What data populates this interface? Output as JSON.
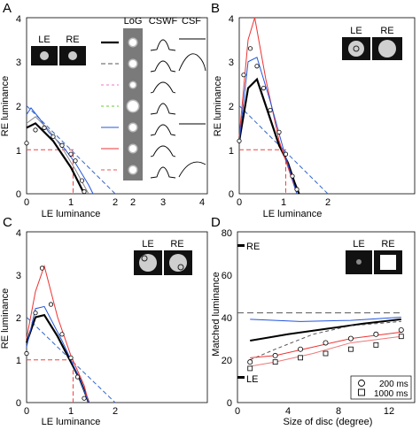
{
  "figure": {
    "panels": [
      {
        "letter": "A",
        "xlabel": "LE luminance",
        "ylabel": "RE luminance",
        "xticks": [
          "0",
          "1",
          "2"
        ],
        "yticks": [
          "0",
          "1",
          "2",
          "3",
          "4"
        ],
        "inset_labels": [
          "LE",
          "RE"
        ]
      },
      {
        "letter": "B",
        "xlabel": "LE luminance",
        "ylabel": "RE luminance",
        "xticks": [
          "0",
          "1",
          "2"
        ],
        "yticks": [
          "0",
          "1",
          "2",
          "3",
          "4"
        ],
        "inset_labels": [
          "LE",
          "RE"
        ]
      },
      {
        "letter": "C",
        "xlabel": "LE luminance",
        "ylabel": "RE luminance",
        "xticks": [
          "0",
          "1",
          "2"
        ],
        "yticks": [
          "0",
          "1",
          "2",
          "3",
          "4"
        ],
        "inset_labels": [
          "LE",
          "RE"
        ]
      },
      {
        "letter": "D",
        "xlabel": "Size of disc (degree)",
        "ylabel": "Matched luminance",
        "xticks": [
          "0",
          "4",
          "8",
          "12"
        ],
        "yticks": [
          "0",
          "20",
          "40",
          "60",
          "80"
        ],
        "inset_labels": [
          "LE",
          "RE"
        ],
        "marker_re": "RE",
        "marker_le": "LE",
        "legend": [
          "200 ms",
          "1000 ms"
        ]
      }
    ],
    "filter_table": {
      "headers": [
        "LoG",
        "CSWF",
        "CSF"
      ],
      "x_axis_ticks": [
        "2",
        "3",
        "4"
      ],
      "row_colors": [
        "#000000",
        "#555555",
        "#ee77cc",
        "#66cc33",
        "#2255dd",
        "#ee3333",
        "#ee5555"
      ]
    }
  },
  "chart_data": [
    {
      "type": "line",
      "panel": "A",
      "xlabel": "LE luminance",
      "ylabel": "RE luminance",
      "xlim": [
        0,
        2
      ],
      "ylim": [
        0,
        4
      ],
      "curves": [
        {
          "color": "#000000",
          "x": [
            0,
            0.2,
            0.4,
            0.6,
            0.8,
            1.0,
            1.2,
            1.3
          ],
          "y": [
            1.5,
            1.6,
            1.4,
            1.2,
            0.9,
            0.6,
            0.2,
            0
          ]
        },
        {
          "color": "#2255dd",
          "x": [
            0,
            0.1,
            0.3,
            0.5,
            0.8,
            1.1,
            1.4,
            1.5
          ],
          "y": [
            1.8,
            1.95,
            1.7,
            1.4,
            1.1,
            0.7,
            0.2,
            0
          ]
        },
        {
          "color": "#888888",
          "x": [
            0,
            0.2,
            0.5,
            0.8,
            1.1,
            1.4
          ],
          "y": [
            1.6,
            1.75,
            1.45,
            1.05,
            0.55,
            0
          ]
        }
      ],
      "points": {
        "x": [
          0,
          0.2,
          0.4,
          0.6,
          0.8,
          1.0,
          1.1,
          1.25,
          1.3
        ],
        "y": [
          1.15,
          1.45,
          1.5,
          1.3,
          1.1,
          0.9,
          0.75,
          0.3,
          0.05
        ]
      },
      "reference_lines": [
        {
          "from": [
            0,
            2
          ],
          "to": [
            2,
            0
          ]
        }
      ],
      "match_point": [
        1.05,
        1.0
      ]
    },
    {
      "type": "line",
      "panel": "B",
      "xlabel": "LE luminance",
      "ylabel": "RE luminance",
      "xlim": [
        0,
        2
      ],
      "ylim": [
        0,
        4
      ],
      "curves": [
        {
          "color": "#000000",
          "x": [
            0,
            0.2,
            0.4,
            0.6,
            0.9,
            1.1,
            1.25,
            1.35
          ],
          "y": [
            1.2,
            2.4,
            2.6,
            2.0,
            1.1,
            0.7,
            0.25,
            0
          ]
        },
        {
          "color": "#ee3333",
          "x": [
            0,
            0.2,
            0.35,
            0.6,
            0.9,
            1.2,
            1.3
          ],
          "y": [
            1.3,
            3.5,
            4.0,
            2.6,
            1.2,
            0.3,
            0
          ]
        },
        {
          "color": "#2255dd",
          "x": [
            0,
            0.2,
            0.4,
            0.7,
            1.0,
            1.3
          ],
          "y": [
            1.2,
            3.0,
            3.1,
            2.1,
            1.0,
            0
          ]
        }
      ],
      "points": {
        "x": [
          0,
          0.1,
          0.25,
          0.4,
          0.55,
          0.7,
          0.9,
          1.05,
          1.2,
          1.3
        ],
        "y": [
          1.2,
          2.7,
          3.3,
          2.9,
          2.4,
          1.9,
          1.4,
          0.9,
          0.4,
          0.1
        ]
      },
      "reference_lines": [
        {
          "from": [
            0,
            2
          ],
          "to": [
            2,
            0
          ]
        }
      ],
      "match_point": [
        1.05,
        1.0
      ]
    },
    {
      "type": "line",
      "panel": "C",
      "xlabel": "LE luminance",
      "ylabel": "RE luminance",
      "xlim": [
        0,
        2
      ],
      "ylim": [
        0,
        4
      ],
      "curves": [
        {
          "color": "#000000",
          "x": [
            0,
            0.2,
            0.4,
            0.7,
            1.0,
            1.2,
            1.35,
            1.4
          ],
          "y": [
            1.4,
            2.0,
            2.05,
            1.55,
            0.95,
            0.55,
            0.15,
            0
          ]
        },
        {
          "color": "#ee3333",
          "x": [
            0,
            0.2,
            0.4,
            0.7,
            1.0,
            1.3,
            1.4
          ],
          "y": [
            1.5,
            2.6,
            3.2,
            2.0,
            1.1,
            0.4,
            0
          ]
        },
        {
          "color": "#2255dd",
          "x": [
            0,
            0.2,
            0.4,
            0.8,
            1.2,
            1.4
          ],
          "y": [
            1.3,
            2.2,
            2.25,
            1.45,
            0.55,
            0
          ]
        }
      ],
      "points": {
        "x": [
          0,
          0.2,
          0.35,
          0.55,
          0.8,
          1.0,
          1.15,
          1.3
        ],
        "y": [
          1.15,
          2.1,
          3.15,
          2.3,
          1.6,
          1.05,
          0.6,
          0.1
        ]
      },
      "reference_lines": [
        {
          "from": [
            0,
            2
          ],
          "to": [
            2,
            0
          ]
        }
      ],
      "match_point": [
        1.05,
        1.0
      ]
    },
    {
      "type": "line",
      "panel": "D",
      "xlabel": "Size of disc (degree)",
      "ylabel": "Matched luminance",
      "xlim": [
        0,
        14
      ],
      "ylim": [
        0,
        80
      ],
      "reference_levels": {
        "RE": 72,
        "LE": 12
      },
      "series": [
        {
          "color": "#555555",
          "dash": "long",
          "x": [
            0,
            13
          ],
          "y": [
            42,
            42
          ]
        },
        {
          "color": "#2255dd",
          "x": [
            1,
            5,
            9,
            13
          ],
          "y": [
            39,
            38,
            38.5,
            40
          ]
        },
        {
          "color": "#000000",
          "x": [
            1,
            4,
            7,
            10,
            13
          ],
          "y": [
            29,
            32,
            34.5,
            37,
            39
          ]
        },
        {
          "color": "#555555",
          "dash": "short",
          "x": [
            1,
            3,
            6,
            9,
            13
          ],
          "y": [
            20,
            25,
            32,
            36,
            38
          ]
        },
        {
          "color": "#ee3333",
          "x": [
            1,
            3,
            6,
            9,
            13
          ],
          "y": [
            21,
            22,
            26,
            30,
            33
          ]
        },
        {
          "color": "#ee7777",
          "x": [
            1,
            3,
            6,
            9,
            13
          ],
          "y": [
            17,
            19,
            23,
            28,
            31
          ]
        }
      ],
      "markers_200ms": {
        "x": [
          1,
          3,
          5,
          7,
          9,
          11,
          13
        ],
        "y": [
          19,
          22,
          25,
          28,
          30,
          32,
          34
        ]
      },
      "markers_1000ms": {
        "x": [
          1,
          3,
          5,
          7,
          9,
          11,
          13
        ],
        "y": [
          16,
          19,
          21,
          23,
          25,
          27,
          31
        ]
      }
    }
  ]
}
